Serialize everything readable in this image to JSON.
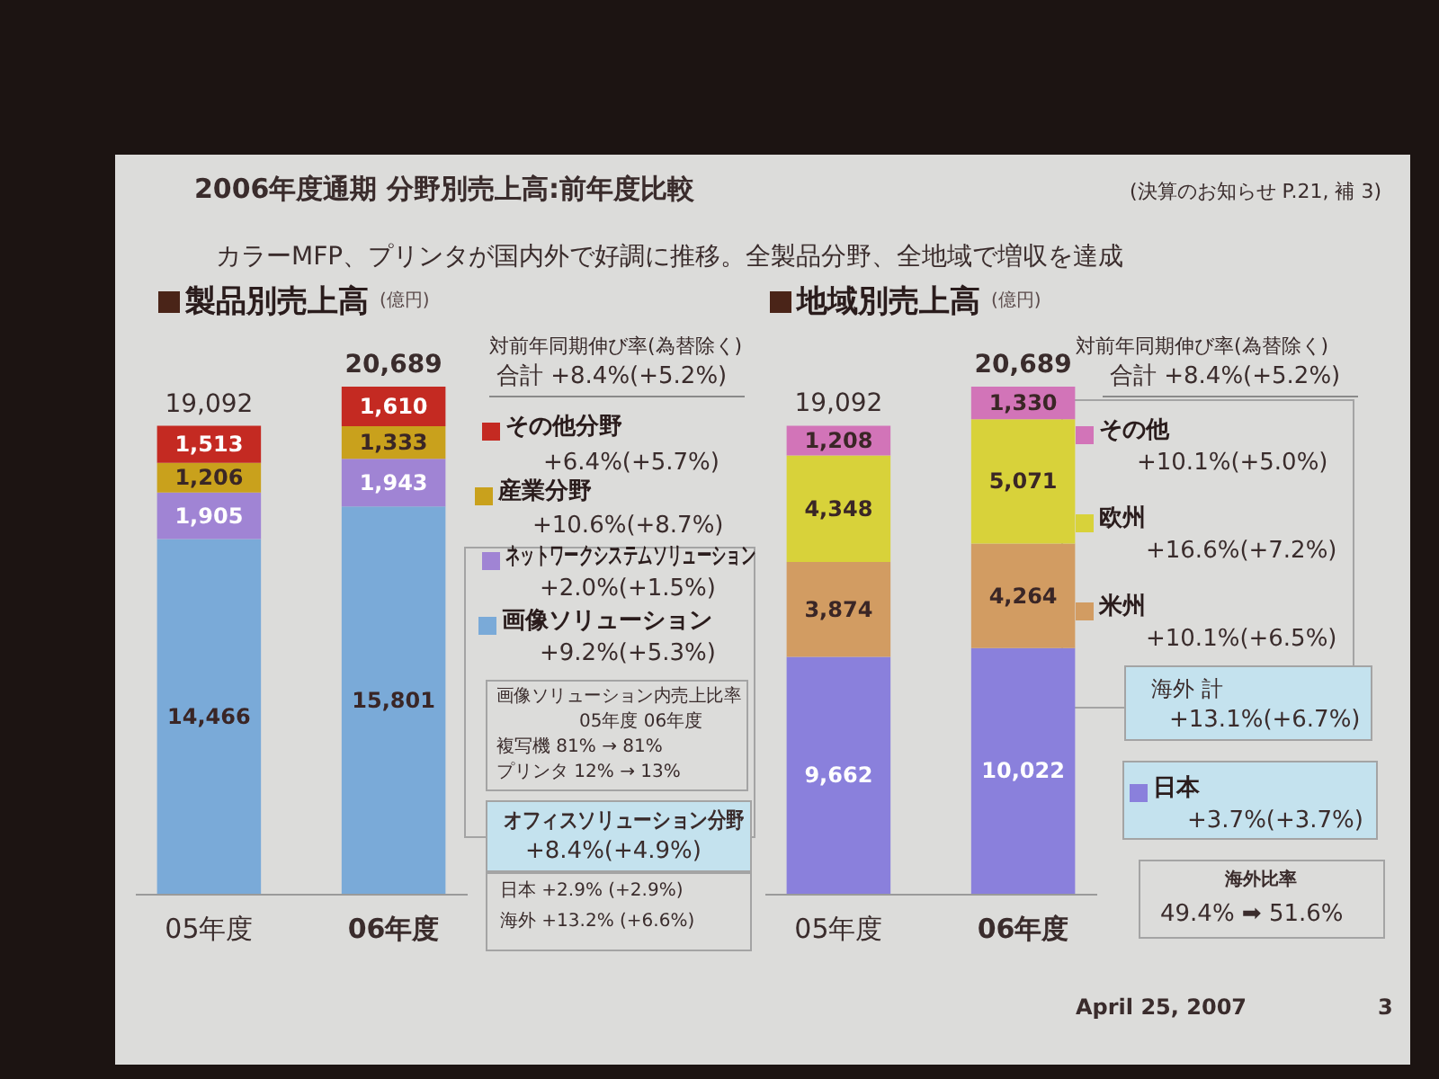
{
  "chart_data": [
    {
      "type": "bar",
      "title": "製品別売上高",
      "ylabel": "(億円)",
      "categories": [
        "05年度",
        "06年度"
      ],
      "stacked": true,
      "series": [
        {
          "name": "画像ソリューション",
          "color": "#7aaad8",
          "values": [
            14466,
            15801
          ],
          "value_labels": [
            "14,466",
            "15,801"
          ]
        },
        {
          "name": "ネットワークシステムソリューション",
          "color": "#a084d4",
          "values": [
            1905,
            1943
          ],
          "value_labels": [
            "1,905",
            "1,943"
          ]
        },
        {
          "name": "産業分野",
          "color": "#c9a11c",
          "values": [
            1206,
            1333
          ],
          "value_labels": [
            "1,206",
            "1,333"
          ]
        },
        {
          "name": "その他分野",
          "color": "#c42a22",
          "values": [
            1513,
            1610
          ],
          "value_labels": [
            "1,513",
            "1,610"
          ]
        }
      ],
      "totals": [
        "19,092",
        "20,689"
      ],
      "tick_labels": "x",
      "legend": "right",
      "annotations": [
        "2006年度通期 分野別売上高:前年度比較",
        "(決算のお知らせ P.21, 補 3)",
        "カラーMFP、プリンタが国内外で好調に推移。全製品分野、全地域で増収を達成",
        "対前年同期伸び率(為替除く)",
        "合計 +8.4%(+5.2%)",
        "+6.4%(+5.7%)",
        "+10.6%(+8.7%)",
        "+2.0%(+1.5%)",
        "+9.2%(+5.3%)",
        "画像ソリューション内売上比率",
        "05年度 06年度",
        "複写機 81% → 81%",
        "プリンタ 12% → 13%",
        "オフィスソリューション分野",
        "+8.4%(+4.9%)",
        "日本 +2.9% (+2.9%)",
        "海外 +13.2% (+6.6%)"
      ]
    },
    {
      "type": "bar",
      "title": "地域別売上高",
      "ylabel": "(億円)",
      "categories": [
        "05年度",
        "06年度"
      ],
      "stacked": true,
      "series": [
        {
          "name": "日本",
          "color": "#8a80dc",
          "values": [
            9662,
            10022
          ],
          "value_labels": [
            "9,662",
            "10,022"
          ]
        },
        {
          "name": "米州",
          "color": "#d29c62",
          "values": [
            3874,
            4264
          ],
          "value_labels": [
            "3,874",
            "4,264"
          ]
        },
        {
          "name": "欧州",
          "color": "#d8d23a",
          "values": [
            4348,
            5071
          ],
          "value_labels": [
            "4,348",
            "5,071"
          ]
        },
        {
          "name": "その他",
          "color": "#d274b8",
          "values": [
            1208,
            1330
          ],
          "value_labels": [
            "1,208",
            "1,330"
          ]
        }
      ],
      "totals": [
        "19,092",
        "20,689"
      ],
      "tick_labels": "x",
      "legend": "right",
      "annotations": [
        "対前年同期伸び率(為替除く)",
        "合計 +8.4%(+5.2%)",
        "+10.1%(+5.0%)",
        "+16.6%(+7.2%)",
        "+10.1%(+6.5%)",
        "海外 計",
        "+13.1%(+6.7%)",
        "+3.7%(+3.7%)",
        "海外比率",
        "49.4% ➡ 51.6%",
        "April 25, 2007",
        "3"
      ]
    }
  ]
}
